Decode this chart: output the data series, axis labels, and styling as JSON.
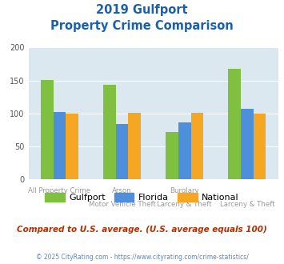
{
  "title_line1": "2019 Gulfport",
  "title_line2": "Property Crime Comparison",
  "groups": [
    {
      "label_top": "All Property Crime",
      "label_bottom": "",
      "gulfport": 151,
      "florida": 102,
      "national": 100
    },
    {
      "label_top": "Arson",
      "label_bottom": "Motor Vehicle Theft",
      "gulfport": 143,
      "florida": 84,
      "national": 101
    },
    {
      "label_top": "Burglary",
      "label_bottom": "Larceny & Theft",
      "gulfport": 72,
      "florida": 86,
      "national": 101
    },
    {
      "label_top": "",
      "label_bottom": "Larceny & Theft",
      "gulfport": 168,
      "florida": 107,
      "national": 100
    }
  ],
  "color_gulfport": "#80c040",
  "color_florida": "#4d8fdb",
  "color_national": "#f5a623",
  "ylim": [
    0,
    200
  ],
  "yticks": [
    0,
    50,
    100,
    150,
    200
  ],
  "background_color": "#dce8f0",
  "title_color": "#1a5fb0",
  "subtitle_text": "Compared to U.S. average. (U.S. average equals 100)",
  "subtitle_color": "#b03000",
  "footer_text": "© 2025 CityRating.com - https://www.cityrating.com/crime-statistics/",
  "footer_color": "#5588bb",
  "legend_labels": [
    "Gulfport",
    "Florida",
    "National"
  ]
}
